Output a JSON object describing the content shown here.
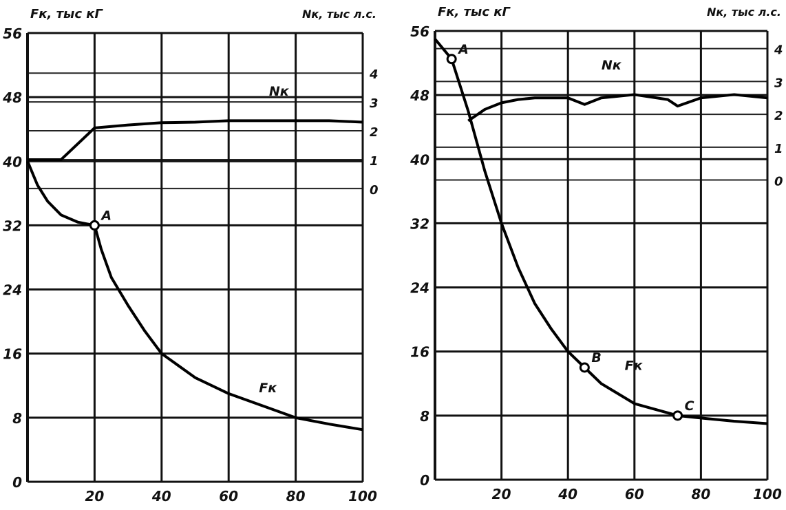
{
  "chart_data": [
    {
      "type": "line",
      "title": "",
      "ylabel": "Fк, тыс кГ",
      "ylabel_right": "Nк, тыс л.с.",
      "xlim": [
        0,
        100
      ],
      "ylim": [
        0,
        56
      ],
      "x_ticks": [
        "20",
        "40",
        "60",
        "80",
        "100"
      ],
      "y_ticks": [
        "0",
        "8",
        "16",
        "24",
        "32",
        "40",
        "48",
        "56"
      ],
      "y2_ticks": [
        "0",
        "1",
        "2",
        "3",
        "4"
      ],
      "y2_map": {
        "f_at_zero": 36.6,
        "f_per_unit": 3.6
      },
      "grid": true,
      "series": [
        {
          "name": "Fк",
          "axis": "left",
          "x": [
            0,
            3,
            6,
            10,
            15,
            20,
            22,
            25,
            30,
            35,
            40,
            50,
            60,
            70,
            80,
            90,
            100
          ],
          "y": [
            40,
            37,
            35,
            33.3,
            32.4,
            32,
            29,
            25.5,
            22,
            18.8,
            16,
            13,
            11,
            9.5,
            8,
            7.2,
            6.5
          ]
        },
        {
          "name": "Nк",
          "axis": "right",
          "x": [
            0,
            10,
            20,
            30,
            40,
            50,
            60,
            70,
            80,
            90,
            100
          ],
          "y": [
            1,
            1,
            2.1,
            2.2,
            2.28,
            2.3,
            2.35,
            2.35,
            2.35,
            2.35,
            2.3
          ]
        }
      ],
      "annotations": [
        {
          "label": "A",
          "x": 20,
          "y": 32,
          "marker": true
        },
        {
          "label": "Fк",
          "x": 67,
          "y": 10.5,
          "marker": false
        },
        {
          "label": "Nк",
          "x": 70,
          "y": 47.5,
          "marker": false
        }
      ]
    },
    {
      "type": "line",
      "title": "",
      "ylabel": "Fк, тыс кГ",
      "ylabel_right": "Nк, тыс л.с.",
      "xlim": [
        0,
        100
      ],
      "ylim": [
        0,
        56
      ],
      "x_ticks": [
        "20",
        "40",
        "60",
        "80",
        "100"
      ],
      "y_ticks": [
        "0",
        "8",
        "16",
        "24",
        "32",
        "40",
        "48",
        "56"
      ],
      "y2_ticks": [
        "0",
        "1",
        "2",
        "3",
        "4"
      ],
      "y2_map": {
        "f_at_zero": 37.4,
        "f_per_unit": 4.1
      },
      "grid": true,
      "series": [
        {
          "name": "Fк",
          "axis": "left",
          "x": [
            0,
            5,
            10,
            15,
            20,
            25,
            30,
            35,
            40,
            45,
            50,
            60,
            73,
            80,
            90,
            100
          ],
          "y": [
            55,
            52.5,
            46,
            38.5,
            32,
            26.5,
            22,
            18.8,
            16,
            14,
            12,
            9.5,
            8,
            7.7,
            7.3,
            7
          ]
        },
        {
          "name": "Nк",
          "axis": "right",
          "x": [
            10,
            15,
            20,
            25,
            30,
            40,
            45,
            50,
            60,
            70,
            73,
            80,
            90,
            100
          ],
          "y": [
            1.8,
            2.15,
            2.35,
            2.45,
            2.5,
            2.5,
            2.3,
            2.5,
            2.6,
            2.45,
            2.25,
            2.5,
            2.6,
            2.5
          ]
        }
      ],
      "annotations": [
        {
          "label": "A",
          "x": 5,
          "y": 52.5,
          "marker": true
        },
        {
          "label": "B",
          "x": 45,
          "y": 14,
          "marker": true
        },
        {
          "label": "C",
          "x": 73,
          "y": 8,
          "marker": true
        },
        {
          "label": "Fк",
          "x": 55,
          "y": 13,
          "marker": false
        },
        {
          "label": "Nк",
          "x": 48,
          "y": 50.5,
          "marker": false
        }
      ]
    }
  ]
}
